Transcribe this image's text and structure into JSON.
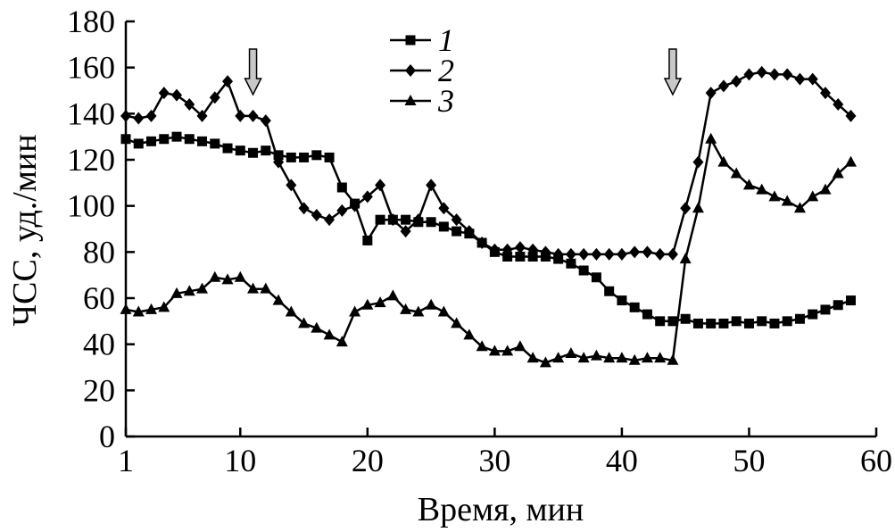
{
  "chart_data": {
    "type": "line",
    "xlabel": "Время, мин",
    "ylabel": "ЧСС, уд./мин",
    "xlim": [
      1,
      60
    ],
    "ylim": [
      0,
      180
    ],
    "xticks": [
      1,
      10,
      20,
      30,
      40,
      50,
      60
    ],
    "yticks": [
      0,
      20,
      40,
      60,
      80,
      100,
      120,
      140,
      160,
      180
    ],
    "grid": false,
    "legend_position": "top-center",
    "arrows_at_x": [
      11,
      44
    ],
    "series": [
      {
        "name": "1",
        "marker": "square",
        "points": [
          [
            1,
            129
          ],
          [
            2,
            127
          ],
          [
            3,
            128
          ],
          [
            4,
            129
          ],
          [
            5,
            130
          ],
          [
            6,
            129
          ],
          [
            7,
            128
          ],
          [
            8,
            127
          ],
          [
            9,
            125
          ],
          [
            10,
            124
          ],
          [
            11,
            123
          ],
          [
            12,
            124
          ],
          [
            13,
            122
          ],
          [
            14,
            121
          ],
          [
            15,
            121
          ],
          [
            16,
            122
          ],
          [
            17,
            121
          ],
          [
            18,
            108
          ],
          [
            19,
            101
          ],
          [
            20,
            85
          ],
          [
            21,
            94
          ],
          [
            22,
            94
          ],
          [
            23,
            94
          ],
          [
            24,
            93
          ],
          [
            25,
            93
          ],
          [
            26,
            91
          ],
          [
            27,
            89
          ],
          [
            28,
            88
          ],
          [
            29,
            84
          ],
          [
            30,
            80
          ],
          [
            31,
            78
          ],
          [
            32,
            78
          ],
          [
            33,
            78
          ],
          [
            34,
            78
          ],
          [
            35,
            77
          ],
          [
            36,
            75
          ],
          [
            37,
            72
          ],
          [
            38,
            69
          ],
          [
            39,
            63
          ],
          [
            40,
            59
          ],
          [
            41,
            56
          ],
          [
            42,
            53
          ],
          [
            43,
            50
          ],
          [
            44,
            50
          ],
          [
            45,
            51
          ],
          [
            46,
            49
          ],
          [
            47,
            49
          ],
          [
            48,
            49
          ],
          [
            49,
            50
          ],
          [
            50,
            49
          ],
          [
            51,
            50
          ],
          [
            52,
            49
          ],
          [
            53,
            50
          ],
          [
            54,
            51
          ],
          [
            55,
            53
          ],
          [
            56,
            55
          ],
          [
            57,
            57
          ],
          [
            58,
            59
          ]
        ]
      },
      {
        "name": "2",
        "marker": "diamond",
        "points": [
          [
            1,
            139
          ],
          [
            2,
            138
          ],
          [
            3,
            139
          ],
          [
            4,
            149
          ],
          [
            5,
            148
          ],
          [
            6,
            144
          ],
          [
            7,
            139
          ],
          [
            8,
            147
          ],
          [
            9,
            154
          ],
          [
            10,
            139
          ],
          [
            11,
            139
          ],
          [
            12,
            137
          ],
          [
            13,
            119
          ],
          [
            14,
            109
          ],
          [
            15,
            99
          ],
          [
            16,
            96
          ],
          [
            17,
            94
          ],
          [
            18,
            98
          ],
          [
            19,
            100
          ],
          [
            20,
            104
          ],
          [
            21,
            109
          ],
          [
            22,
            94
          ],
          [
            23,
            89
          ],
          [
            24,
            94
          ],
          [
            25,
            109
          ],
          [
            26,
            99
          ],
          [
            27,
            94
          ],
          [
            28,
            89
          ],
          [
            29,
            84
          ],
          [
            30,
            81
          ],
          [
            31,
            81
          ],
          [
            32,
            82
          ],
          [
            33,
            81
          ],
          [
            34,
            80
          ],
          [
            35,
            79
          ],
          [
            36,
            79
          ],
          [
            37,
            79
          ],
          [
            38,
            79
          ],
          [
            39,
            79
          ],
          [
            40,
            79
          ],
          [
            41,
            80
          ],
          [
            42,
            80
          ],
          [
            43,
            79
          ],
          [
            44,
            79
          ],
          [
            45,
            99
          ],
          [
            46,
            119
          ],
          [
            47,
            149
          ],
          [
            48,
            152
          ],
          [
            49,
            154
          ],
          [
            50,
            157
          ],
          [
            51,
            158
          ],
          [
            52,
            157
          ],
          [
            53,
            157
          ],
          [
            54,
            155
          ],
          [
            55,
            155
          ],
          [
            56,
            149
          ],
          [
            57,
            144
          ],
          [
            58,
            139
          ]
        ]
      },
      {
        "name": "3",
        "marker": "triangle",
        "points": [
          [
            1,
            55
          ],
          [
            2,
            54
          ],
          [
            3,
            55
          ],
          [
            4,
            56
          ],
          [
            5,
            62
          ],
          [
            6,
            63
          ],
          [
            7,
            64
          ],
          [
            8,
            69
          ],
          [
            9,
            68
          ],
          [
            10,
            69
          ],
          [
            11,
            64
          ],
          [
            12,
            64
          ],
          [
            13,
            59
          ],
          [
            14,
            54
          ],
          [
            15,
            49
          ],
          [
            16,
            47
          ],
          [
            17,
            44
          ],
          [
            18,
            41
          ],
          [
            19,
            54
          ],
          [
            20,
            57
          ],
          [
            21,
            58
          ],
          [
            22,
            61
          ],
          [
            23,
            55
          ],
          [
            24,
            54
          ],
          [
            25,
            57
          ],
          [
            26,
            54
          ],
          [
            27,
            49
          ],
          [
            28,
            44
          ],
          [
            29,
            39
          ],
          [
            30,
            37
          ],
          [
            31,
            37
          ],
          [
            32,
            39
          ],
          [
            33,
            34
          ],
          [
            34,
            32
          ],
          [
            35,
            34
          ],
          [
            36,
            36
          ],
          [
            37,
            34
          ],
          [
            38,
            35
          ],
          [
            39,
            34
          ],
          [
            40,
            34
          ],
          [
            41,
            33
          ],
          [
            42,
            34
          ],
          [
            43,
            34
          ],
          [
            44,
            33
          ],
          [
            45,
            77
          ],
          [
            46,
            99
          ],
          [
            47,
            129
          ],
          [
            48,
            119
          ],
          [
            49,
            114
          ],
          [
            50,
            109
          ],
          [
            51,
            107
          ],
          [
            52,
            104
          ],
          [
            53,
            102
          ],
          [
            54,
            99
          ],
          [
            55,
            104
          ],
          [
            56,
            107
          ],
          [
            57,
            114
          ],
          [
            58,
            119
          ]
        ]
      }
    ]
  }
}
